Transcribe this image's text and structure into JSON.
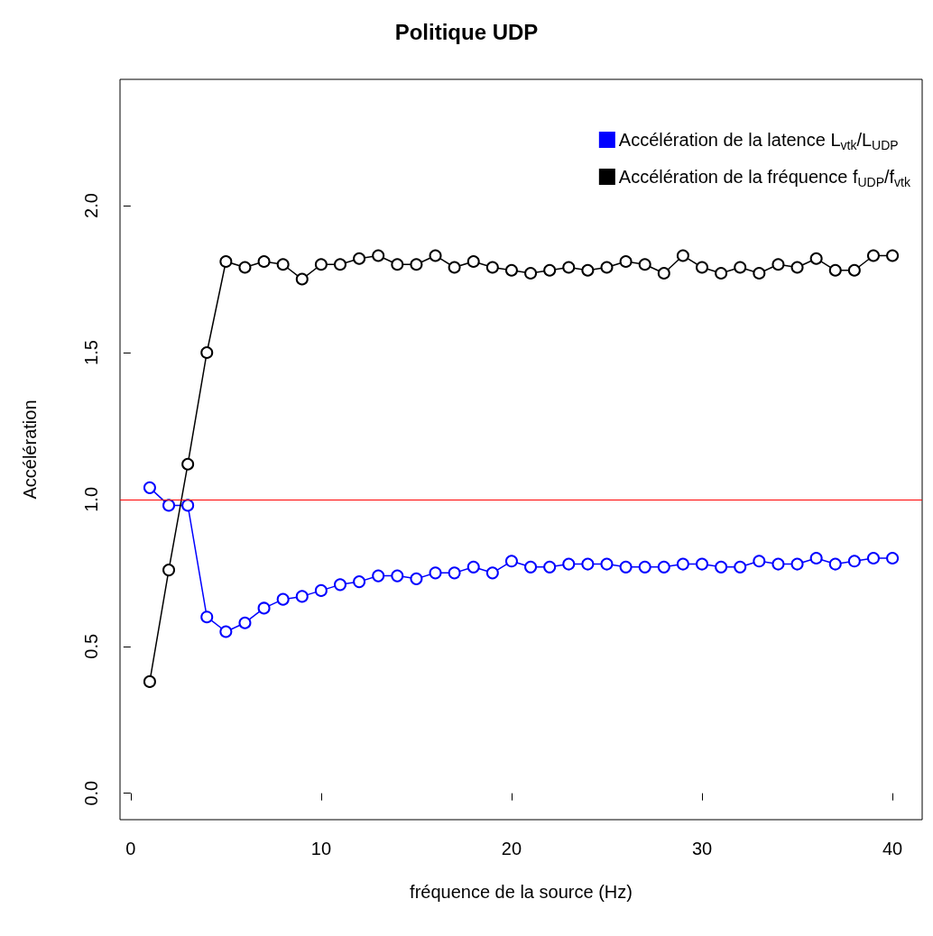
{
  "chart_data": {
    "type": "line",
    "title": "Politique UDP",
    "xlabel": "fréquence de la source (Hz)",
    "ylabel": "Accélération",
    "x": [
      1,
      2,
      3,
      4,
      5,
      6,
      7,
      8,
      9,
      10,
      11,
      12,
      13,
      14,
      15,
      16,
      17,
      18,
      19,
      20,
      21,
      22,
      23,
      24,
      25,
      26,
      27,
      28,
      29,
      30,
      31,
      32,
      33,
      34,
      35,
      36,
      37,
      38,
      39,
      40
    ],
    "series": [
      {
        "name": "Accélération de la latence L$_{vtk}$/L$_{UDP}$",
        "color": "#0000ff",
        "values": [
          1.04,
          0.98,
          0.98,
          0.6,
          0.55,
          0.58,
          0.63,
          0.66,
          0.67,
          0.69,
          0.71,
          0.72,
          0.74,
          0.74,
          0.73,
          0.75,
          0.75,
          0.77,
          0.75,
          0.79,
          0.77,
          0.77,
          0.78,
          0.78,
          0.78,
          0.77,
          0.77,
          0.77,
          0.78,
          0.78,
          0.77,
          0.77,
          0.79,
          0.78,
          0.78,
          0.8,
          0.78,
          0.79,
          0.8,
          0.8
        ]
      },
      {
        "name": "Accélération de la fréquence f$_{UDP}$/f$_{vtk}$",
        "color": "#000000",
        "values": [
          0.38,
          0.76,
          1.12,
          1.5,
          1.81,
          1.79,
          1.81,
          1.8,
          1.75,
          1.8,
          1.8,
          1.82,
          1.83,
          1.8,
          1.8,
          1.83,
          1.79,
          1.81,
          1.79,
          1.78,
          1.77,
          1.78,
          1.79,
          1.78,
          1.79,
          1.81,
          1.8,
          1.77,
          1.83,
          1.79,
          1.77,
          1.79,
          1.77,
          1.8,
          1.79,
          1.82,
          1.78,
          1.78,
          1.83,
          1.83
        ]
      }
    ],
    "xlim": [
      -0.56,
      41.56
    ],
    "xticks": [
      0,
      10,
      20,
      30,
      40
    ],
    "ylim": [
      -0.09,
      2.43
    ],
    "yticks": [
      {
        "value": 0,
        "label": "0.0"
      },
      0.5,
      {
        "value": 1,
        "label": "1.0"
      },
      1.5,
      {
        "value": 2,
        "label": "2.0"
      }
    ],
    "ref_lines": [
      {
        "axis": "y",
        "value": 1,
        "color": "#ff0000"
      }
    ],
    "marker": "circle",
    "line_style": "solid",
    "grid": false,
    "legend": "top right"
  }
}
